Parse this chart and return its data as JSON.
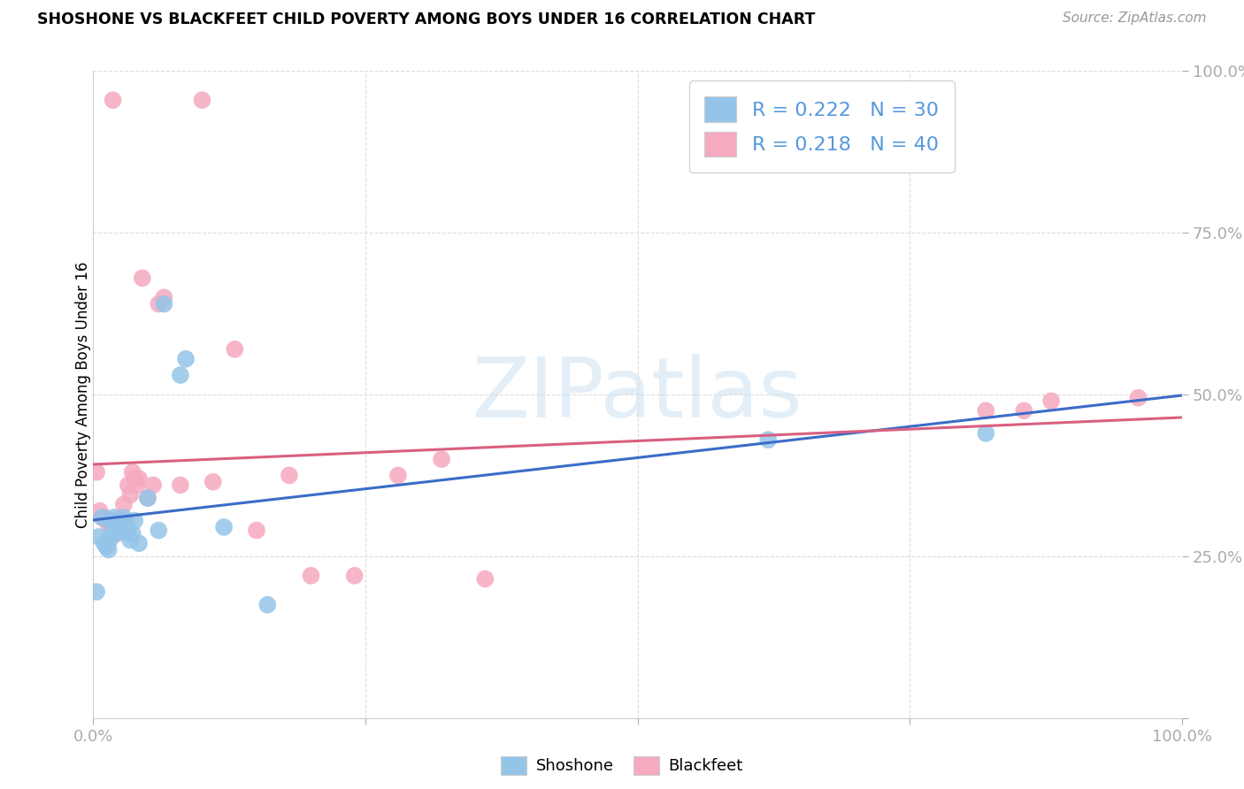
{
  "title": "SHOSHONE VS BLACKFEET CHILD POVERTY AMONG BOYS UNDER 16 CORRELATION CHART",
  "source": "Source: ZipAtlas.com",
  "ylabel": "Child Poverty Among Boys Under 16",
  "xlim": [
    0,
    1
  ],
  "ylim": [
    0,
    1
  ],
  "legend_label_shoshone": "Shoshone",
  "legend_label_blackfeet": "Blackfeet",
  "shoshone_scatter_color": "#94C5E8",
  "blackfeet_scatter_color": "#F5AABF",
  "shoshone_line_color": "#3B6CC8",
  "blackfeet_line_color": "#D96080",
  "R_shoshone": 0.222,
  "N_shoshone": 30,
  "R_blackfeet": 0.218,
  "N_blackfeet": 40,
  "watermark": "ZIPatlas",
  "shoshone_x": [
    0.003,
    0.005,
    0.008,
    0.01,
    0.012,
    0.014,
    0.015,
    0.016,
    0.018,
    0.019,
    0.02,
    0.022,
    0.024,
    0.026,
    0.028,
    0.03,
    0.032,
    0.034,
    0.036,
    0.038,
    0.042,
    0.05,
    0.06,
    0.065,
    0.08,
    0.085,
    0.12,
    0.16,
    0.62,
    0.82
  ],
  "shoshone_y": [
    0.195,
    0.28,
    0.31,
    0.27,
    0.265,
    0.26,
    0.275,
    0.305,
    0.295,
    0.31,
    0.285,
    0.295,
    0.29,
    0.305,
    0.31,
    0.3,
    0.285,
    0.275,
    0.285,
    0.305,
    0.27,
    0.34,
    0.29,
    0.64,
    0.53,
    0.555,
    0.295,
    0.175,
    0.43,
    0.44
  ],
  "blackfeet_x": [
    0.003,
    0.006,
    0.008,
    0.01,
    0.012,
    0.014,
    0.016,
    0.018,
    0.02,
    0.022,
    0.024,
    0.026,
    0.028,
    0.03,
    0.032,
    0.034,
    0.036,
    0.038,
    0.04,
    0.042,
    0.045,
    0.05,
    0.055,
    0.06,
    0.065,
    0.08,
    0.1,
    0.11,
    0.13,
    0.15,
    0.18,
    0.2,
    0.24,
    0.28,
    0.32,
    0.36,
    0.82,
    0.855,
    0.88,
    0.96
  ],
  "blackfeet_y": [
    0.38,
    0.32,
    0.31,
    0.31,
    0.305,
    0.3,
    0.295,
    0.955,
    0.305,
    0.285,
    0.3,
    0.31,
    0.33,
    0.305,
    0.36,
    0.345,
    0.38,
    0.37,
    0.36,
    0.37,
    0.68,
    0.34,
    0.36,
    0.64,
    0.65,
    0.36,
    0.955,
    0.365,
    0.57,
    0.29,
    0.375,
    0.22,
    0.22,
    0.375,
    0.4,
    0.215,
    0.475,
    0.475,
    0.49,
    0.495
  ],
  "grid_color": "#DDDDDD",
  "tick_color": "#5599DD",
  "bg_color": "#FFFFFF"
}
